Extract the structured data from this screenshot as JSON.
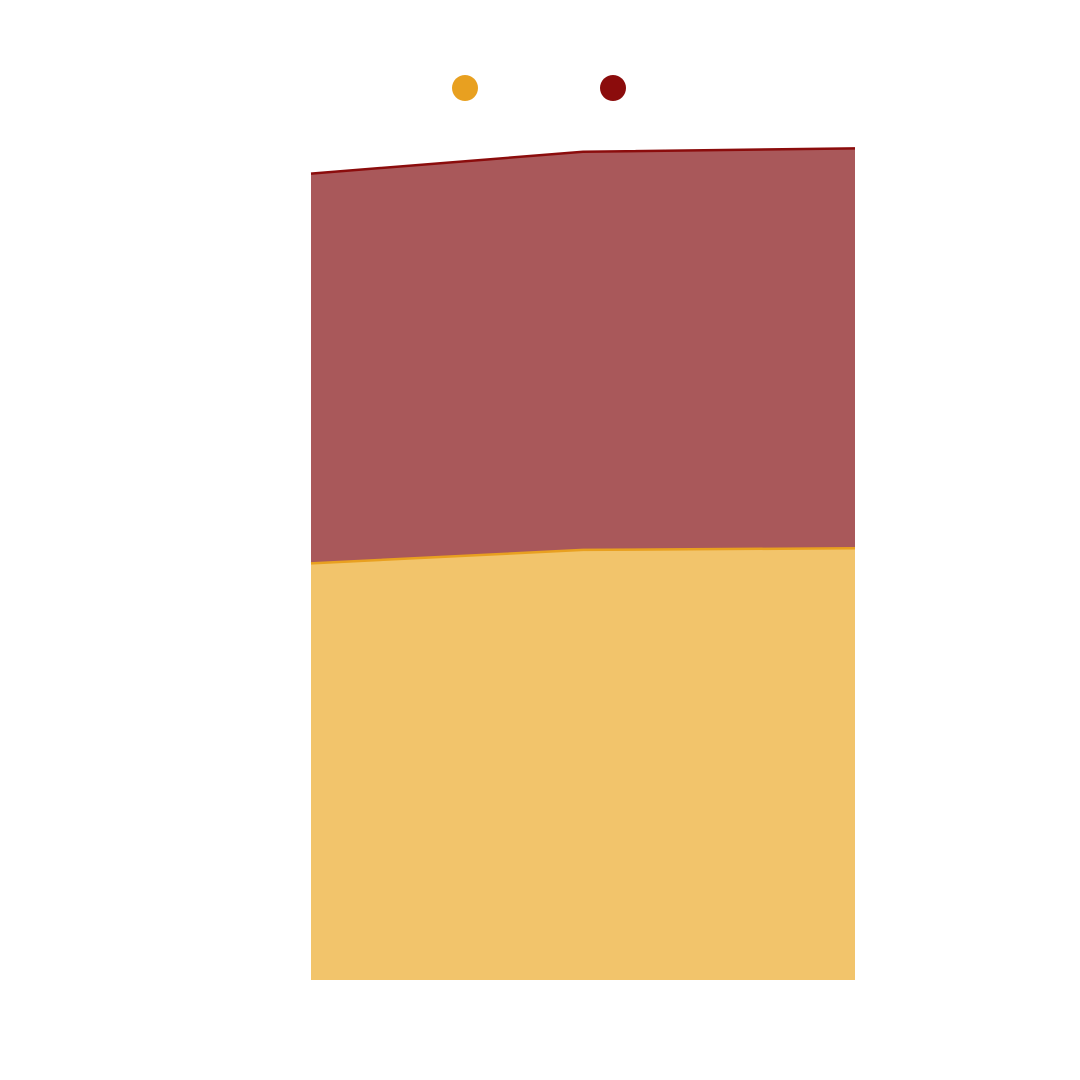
{
  "chart_data": {
    "type": "area",
    "stacked": true,
    "x": [
      0,
      1,
      2
    ],
    "ylim": [
      0,
      100
    ],
    "grid": false,
    "legend_placement": "top-center",
    "series": [
      {
        "values": [
          49.6,
          51.2,
          51.4
        ],
        "line_color": "#e8a020",
        "fill_color": "#f2c46b"
      },
      {
        "values": [
          46.4,
          47.4,
          47.6
        ],
        "line_color": "#8b0c0c",
        "fill_color": "#a9585a"
      }
    ]
  }
}
